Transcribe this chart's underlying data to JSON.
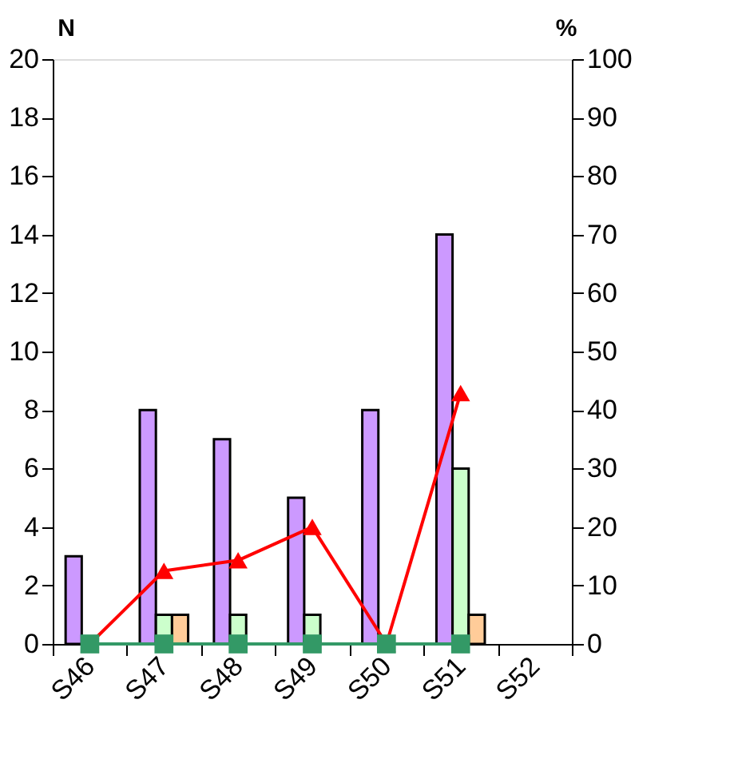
{
  "chart_data": {
    "type": "bar",
    "ylabel": "N",
    "y2label": "%",
    "categories": [
      "S46",
      "S47",
      "S48",
      "S49",
      "S50",
      "S51",
      "S52"
    ],
    "series": [
      {
        "color": "#cc99ff",
        "values": [
          3,
          8,
          7,
          5,
          8,
          14,
          null
        ]
      },
      {
        "color": "#ccffcc",
        "values": [
          null,
          1,
          1,
          1,
          null,
          6,
          null
        ]
      },
      {
        "color": "#ffcc99",
        "values": [
          null,
          1,
          null,
          null,
          null,
          1,
          null
        ]
      },
      {
        "type": "line",
        "axis": "y2",
        "marker": "triangle",
        "color": "#ff0000",
        "values": [
          0,
          12.5,
          14.3,
          20,
          0,
          42.9,
          null
        ]
      },
      {
        "type": "line",
        "axis": "y2",
        "marker": "square",
        "color": "#339966",
        "values": [
          0,
          0,
          0,
          0,
          0,
          0,
          null
        ]
      }
    ],
    "ylim": [
      0,
      20
    ],
    "yticks": [
      0,
      2,
      4,
      6,
      8,
      10,
      12,
      14,
      16,
      18,
      20
    ],
    "y2lim": [
      0,
      100
    ],
    "y2ticks": [
      0,
      10,
      20,
      30,
      40,
      50,
      60,
      70,
      80,
      90,
      100
    ],
    "grid": false
  }
}
